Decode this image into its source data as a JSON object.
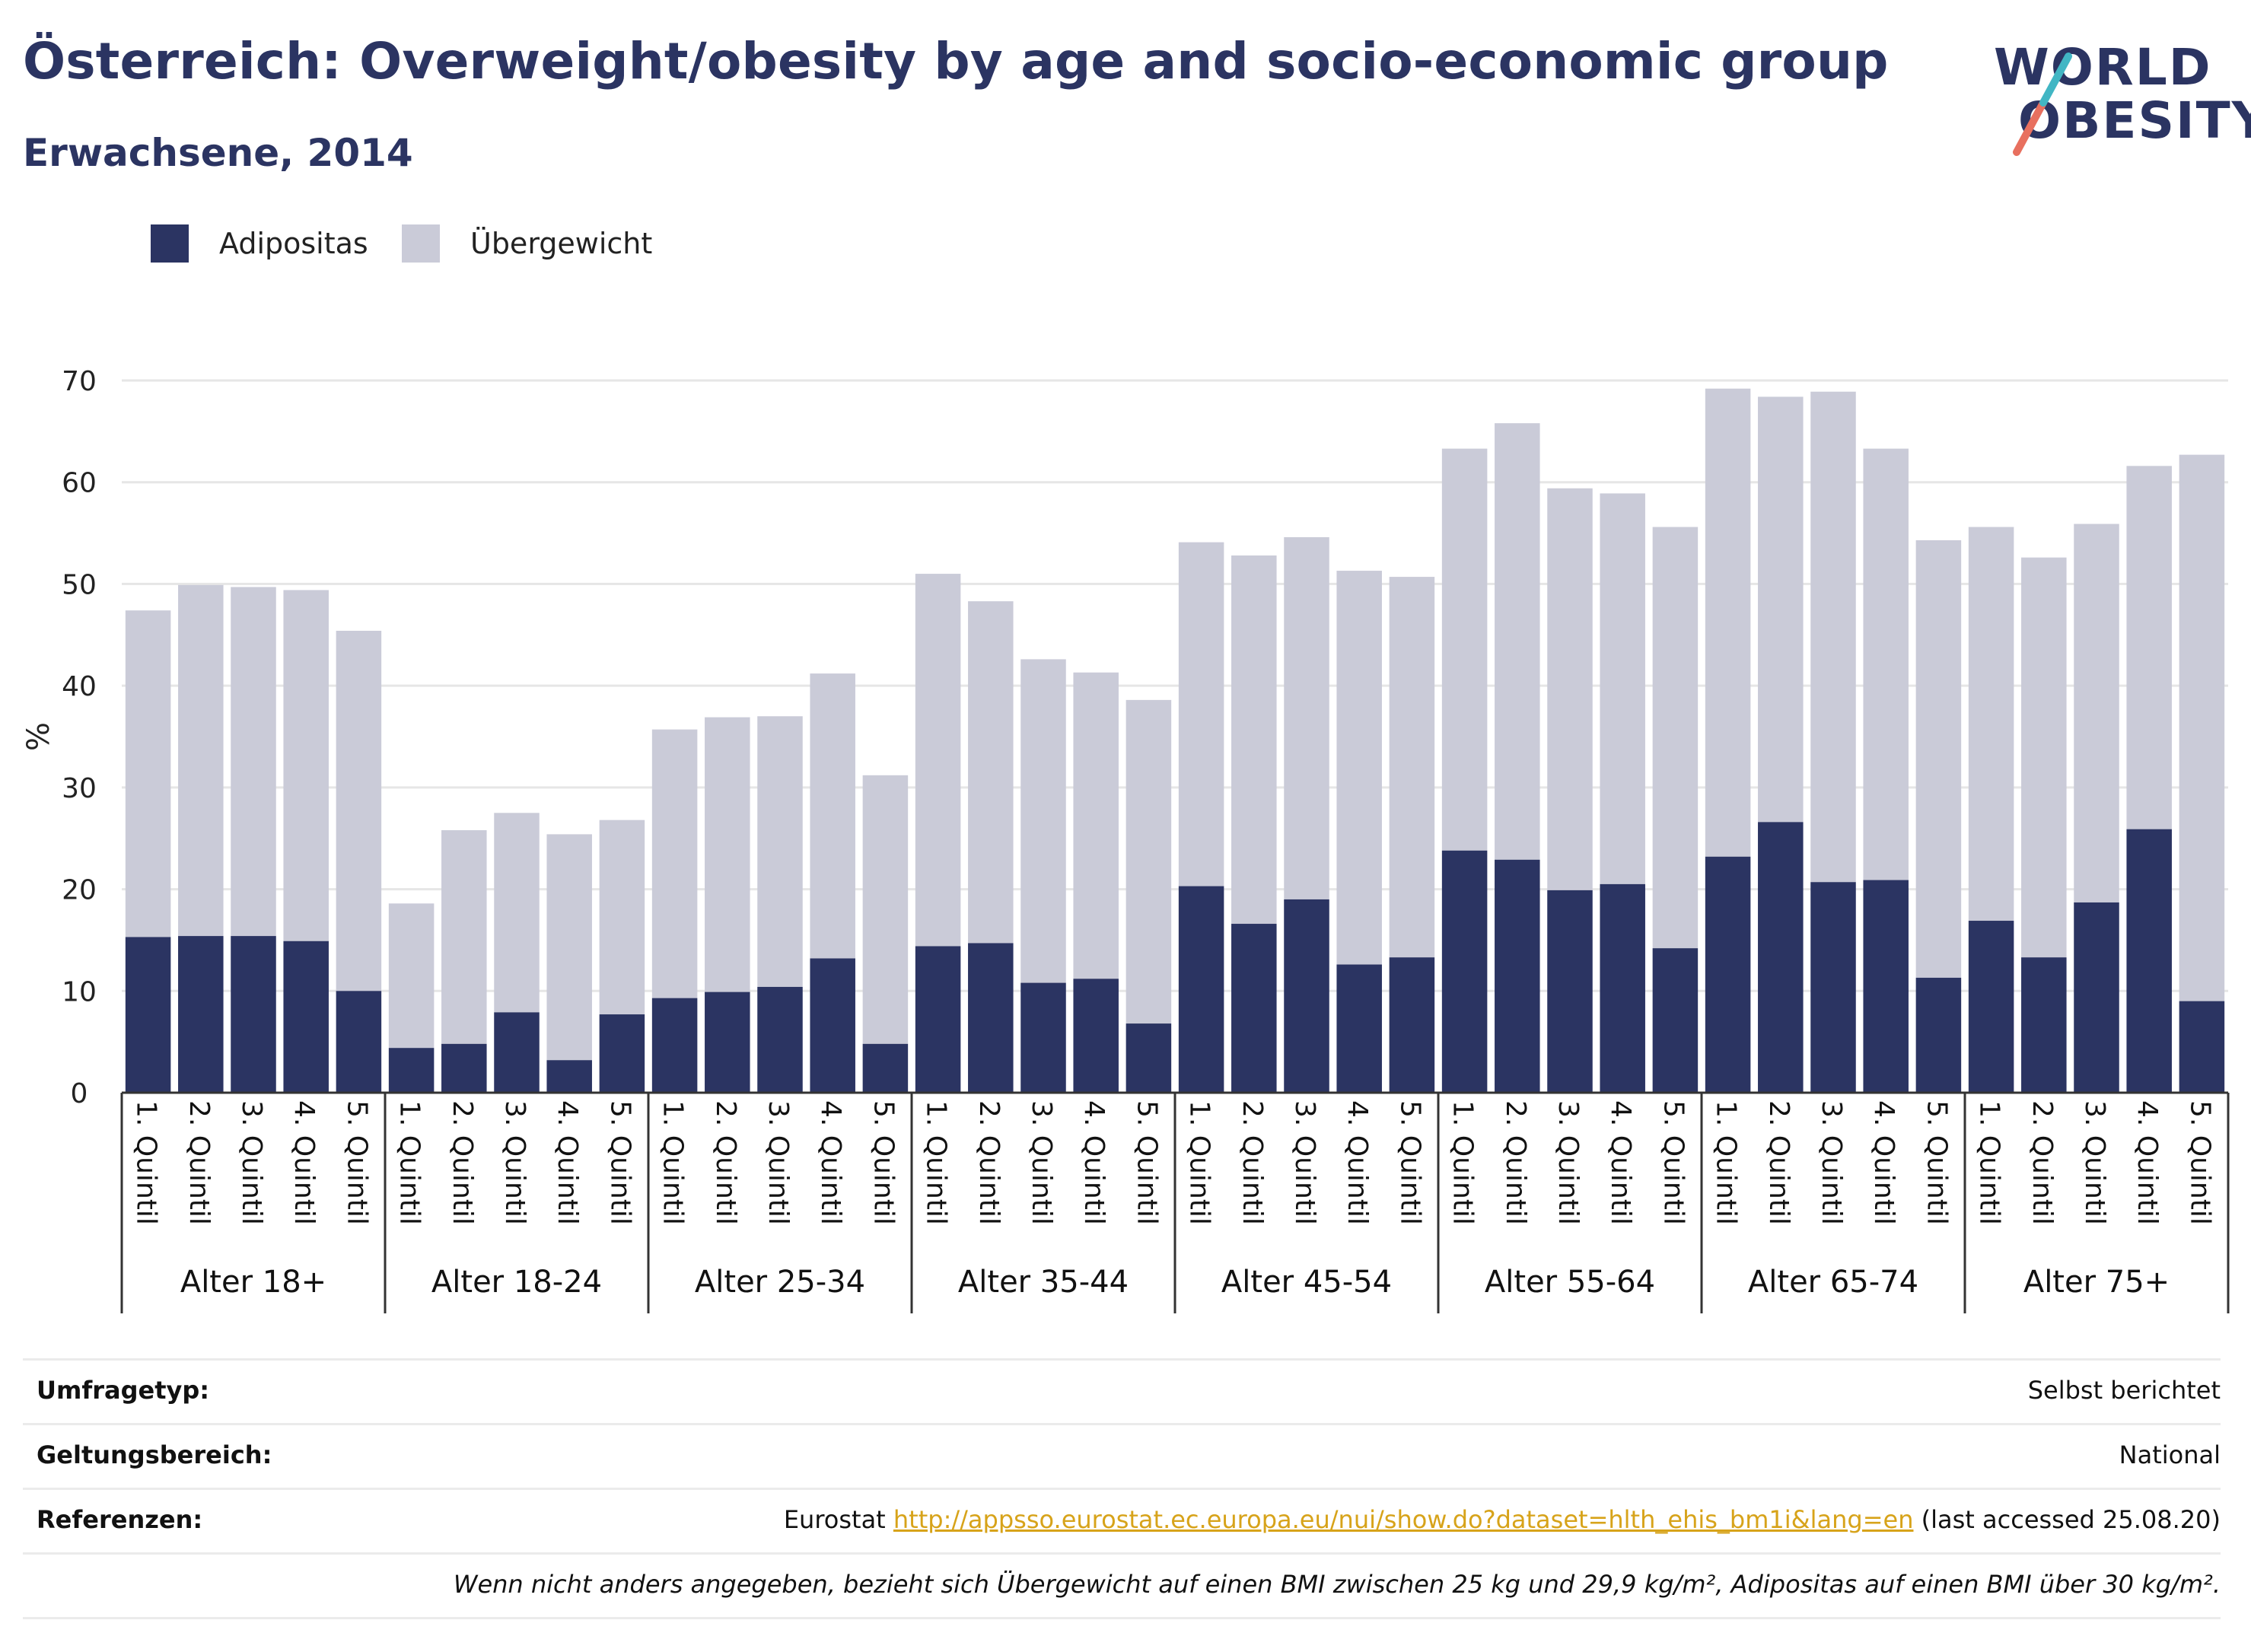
{
  "header": {
    "title": "Österreich: Overweight/obesity by age and socio-economic group",
    "subtitle": "Erwachsene, 2014"
  },
  "logo": {
    "line1": "WORLD",
    "line2": "OBESITY",
    "accent_color": "#e8705f",
    "accent_color2": "#41b6c4"
  },
  "colors": {
    "obesity": "#2b3462",
    "overweight": "#cacbd8",
    "grid": "#e6e6e6",
    "axis": "#333333"
  },
  "legend": [
    {
      "label": "Adipositas",
      "color": "#2b3462"
    },
    {
      "label": "Übergewicht",
      "color": "#cacbd8"
    }
  ],
  "chart_data": {
    "type": "bar",
    "stacked": true,
    "ylabel": "%",
    "ylim": [
      0,
      70
    ],
    "yticks": [
      0,
      10,
      20,
      30,
      40,
      50,
      60,
      70
    ],
    "grid": true,
    "legend_position": "top-left",
    "groups": [
      "Alter 18+",
      "Alter 18-24",
      "Alter 25-34",
      "Alter 35-44",
      "Alter 45-54",
      "Alter 55-64",
      "Alter 65-74",
      "Alter 75+"
    ],
    "categories": [
      "1. Quintil",
      "2. Quintil",
      "3. Quintil",
      "4. Quintil",
      "5. Quintil"
    ],
    "series": [
      {
        "name": "Adipositas",
        "values": [
          [
            15.3,
            15.4,
            15.4,
            14.9,
            10.0
          ],
          [
            4.4,
            4.8,
            7.9,
            3.2,
            7.7
          ],
          [
            9.3,
            9.9,
            10.4,
            13.2,
            4.8
          ],
          [
            14.4,
            14.7,
            10.8,
            11.2,
            6.8
          ],
          [
            20.3,
            16.6,
            19.0,
            12.6,
            13.3
          ],
          [
            23.8,
            22.9,
            19.9,
            20.5,
            14.2
          ],
          [
            23.2,
            26.6,
            20.7,
            20.9,
            11.3
          ],
          [
            16.9,
            13.3,
            18.7,
            25.9,
            9.0
          ]
        ]
      },
      {
        "name": "Übergewicht",
        "values": [
          [
            32.1,
            34.5,
            34.3,
            34.5,
            35.4
          ],
          [
            14.2,
            21.0,
            19.6,
            22.2,
            19.1
          ],
          [
            26.4,
            27.0,
            26.6,
            28.0,
            26.4
          ],
          [
            36.6,
            33.6,
            31.8,
            30.1,
            31.8
          ],
          [
            33.8,
            36.2,
            35.6,
            38.7,
            37.4
          ],
          [
            39.5,
            42.9,
            39.5,
            38.4,
            41.4
          ],
          [
            46.0,
            41.8,
            48.2,
            42.4,
            43.0
          ],
          [
            38.7,
            39.3,
            37.2,
            35.7,
            53.7
          ]
        ]
      }
    ],
    "totals": [
      [
        47.4,
        49.9,
        49.7,
        49.4,
        45.4
      ],
      [
        18.6,
        25.8,
        27.5,
        25.4,
        26.8
      ],
      [
        35.7,
        36.9,
        37.0,
        41.2,
        31.2
      ],
      [
        51.0,
        48.3,
        42.6,
        41.3,
        38.6
      ],
      [
        54.1,
        52.8,
        54.6,
        51.3,
        50.7
      ],
      [
        63.3,
        65.8,
        59.4,
        58.9,
        55.6
      ],
      [
        69.2,
        68.4,
        68.9,
        63.3,
        54.3
      ],
      [
        55.6,
        52.6,
        55.9,
        61.6,
        62.7
      ]
    ]
  },
  "meta": {
    "survey_label": "Umfragetyp:",
    "survey_value": "Selbst berichtet",
    "scope_label": "Geltungsbereich:",
    "scope_value": "National",
    "ref_label": "Referenzen:",
    "ref_prefix": "Eurostat ",
    "ref_link": "http://appsso.eurostat.ec.europa.eu/nui/show.do?dataset=hlth_ehis_bm1i&lang=en",
    "ref_suffix": " (last accessed 25.08.20)",
    "note": "Wenn nicht anders angegeben, bezieht sich Übergewicht auf einen BMI zwischen 25 kg und 29,9 kg/m², Adipositas auf einen BMI über 30 kg/m²."
  }
}
